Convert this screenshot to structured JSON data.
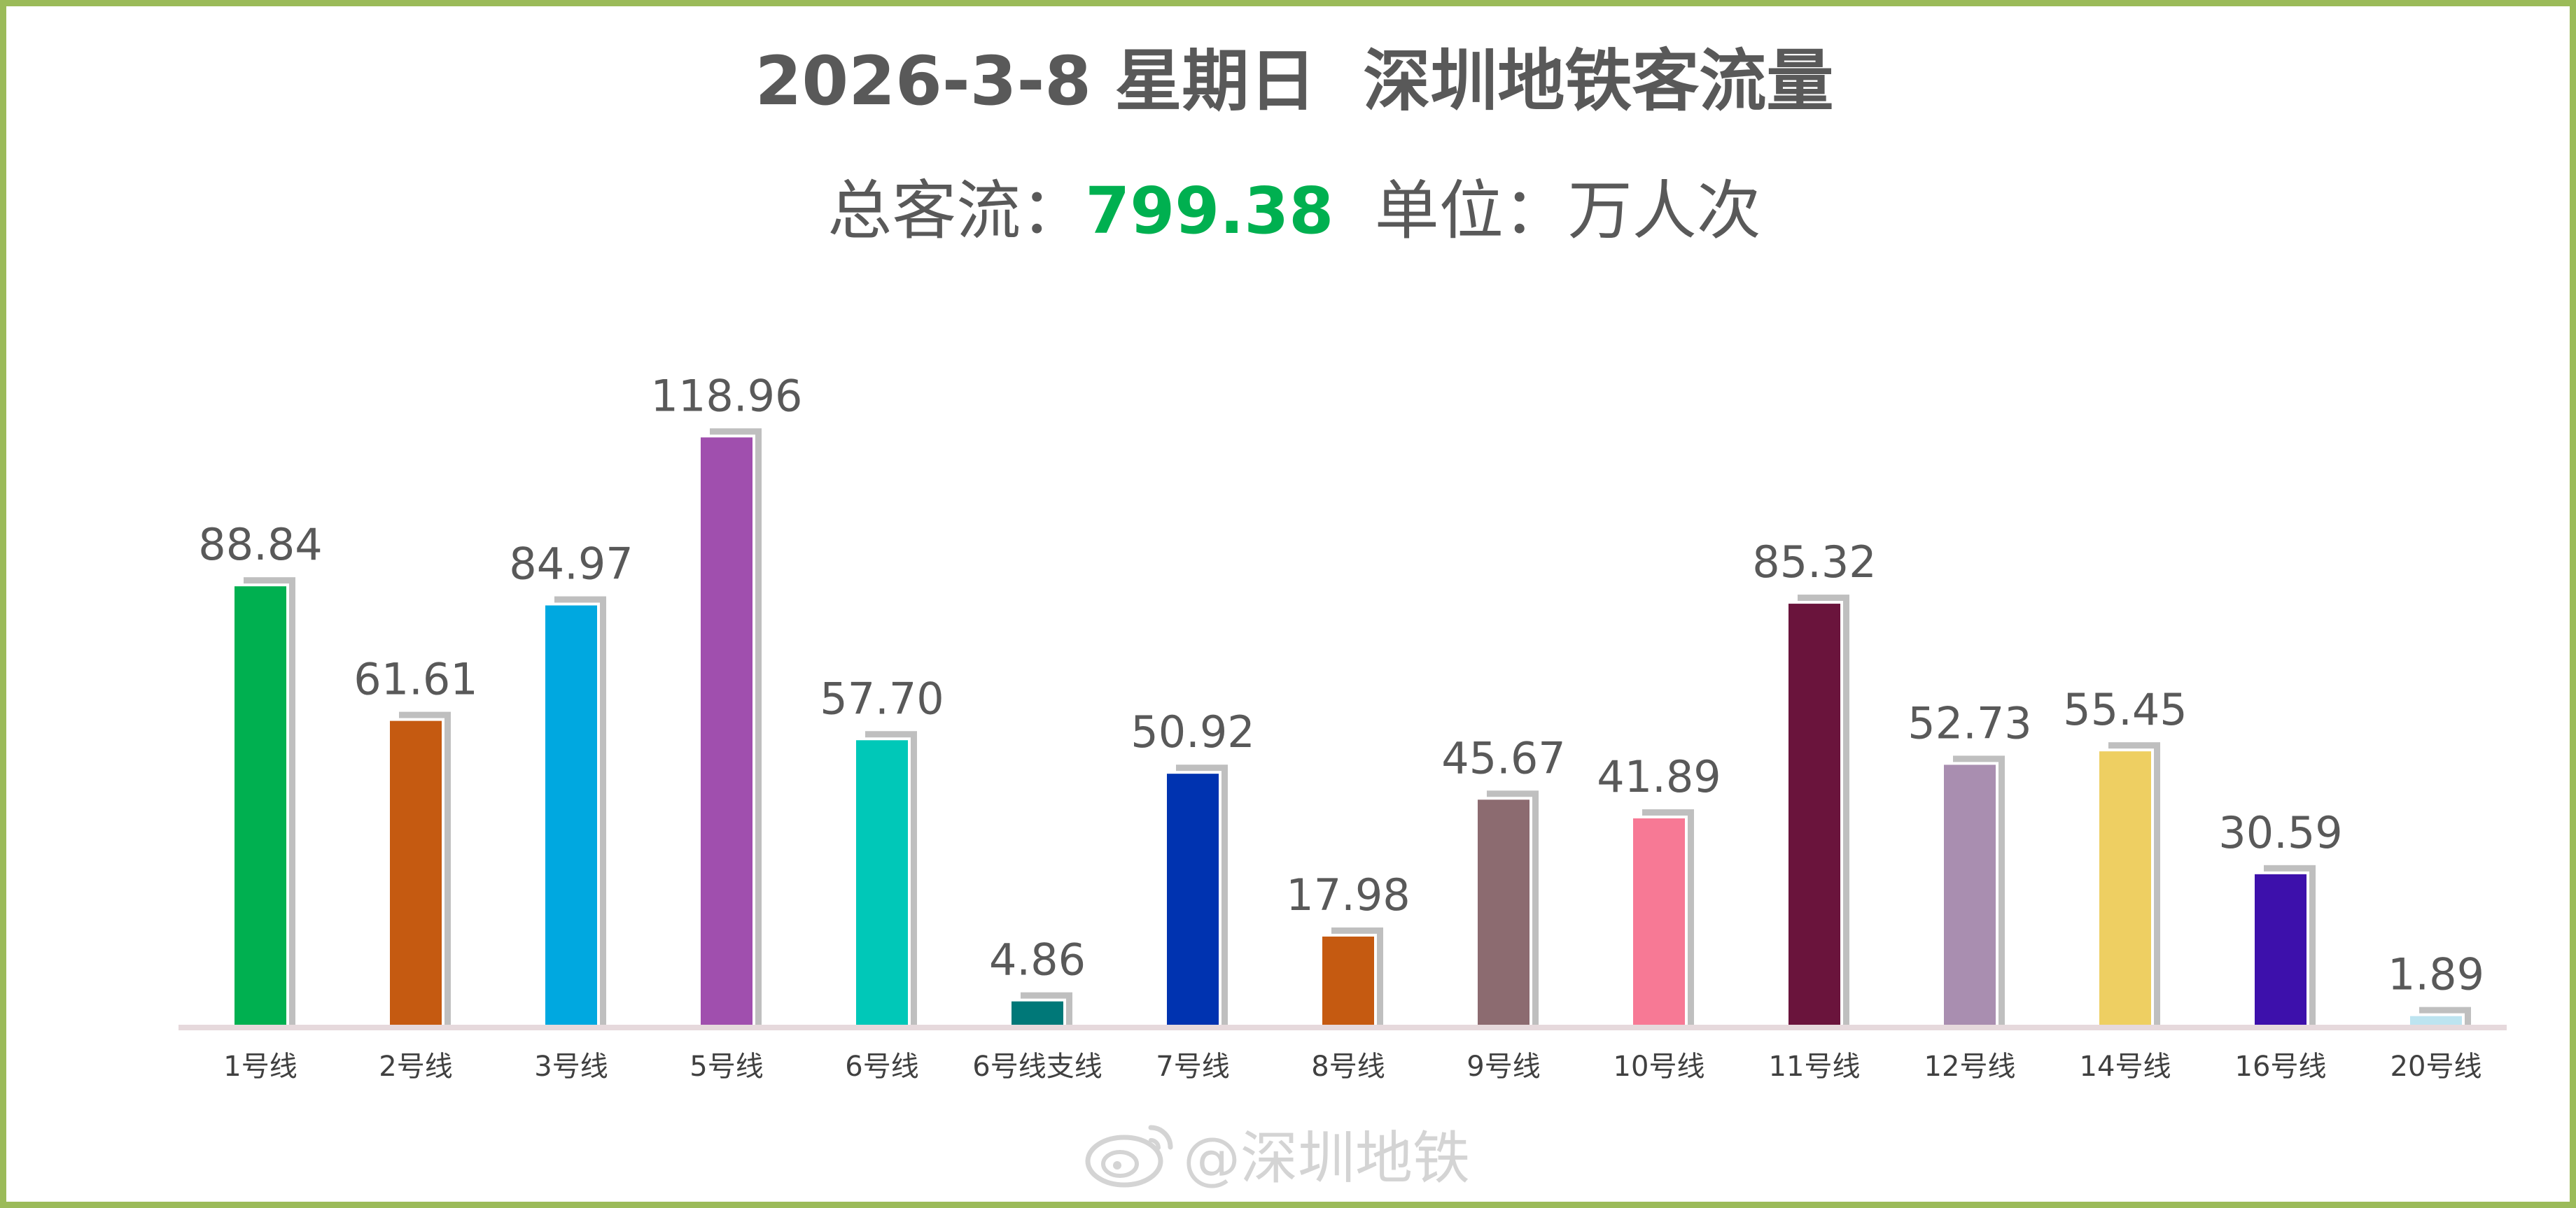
{
  "header": {
    "title": "2026-3-8 星期日  深圳地铁客流量",
    "total_label": "总客流：",
    "total_value": "799.38",
    "unit_text": "  单位：万人次"
  },
  "watermark": {
    "text": "@深圳地铁",
    "icon": "weibo-icon"
  },
  "colors": {
    "border": "#9bbb59",
    "title": "#595959",
    "total_value": "#00b050",
    "bar_shadow": "#bfbfbf",
    "axis": "#e6d9dc"
  },
  "chart_data": {
    "type": "bar",
    "categories": [
      "1号线",
      "2号线",
      "3号线",
      "5号线",
      "6号线",
      "6号线支线",
      "7号线",
      "8号线",
      "9号线",
      "10号线",
      "11号线",
      "12号线",
      "14号线",
      "16号线",
      "20号线"
    ],
    "values": [
      88.84,
      61.61,
      84.97,
      118.96,
      57.7,
      4.86,
      50.92,
      17.98,
      45.67,
      41.89,
      85.32,
      52.73,
      55.45,
      30.59,
      1.89
    ],
    "data_labels": [
      "88.84",
      "61.61",
      "84.97",
      "118.96",
      "57.70",
      "4.86",
      "50.92",
      "17.98",
      "45.67",
      "41.89",
      "85.32",
      "52.73",
      "55.45",
      "30.59",
      "1.89"
    ],
    "bar_colors": [
      "#00b050",
      "#c55a11",
      "#00a8e0",
      "#a04fae",
      "#00c8b8",
      "#007878",
      "#0033b0",
      "#c55a11",
      "#8c6b70",
      "#f77995",
      "#6a143c",
      "#a98eb0",
      "#eecf62",
      "#3d10ab",
      "#bde4f0"
    ],
    "ylim": [
      0,
      120
    ],
    "grid": false,
    "legend": "none",
    "title": "2026-3-8 星期日  深圳地铁客流量",
    "xlabel": "",
    "ylabel": ""
  }
}
